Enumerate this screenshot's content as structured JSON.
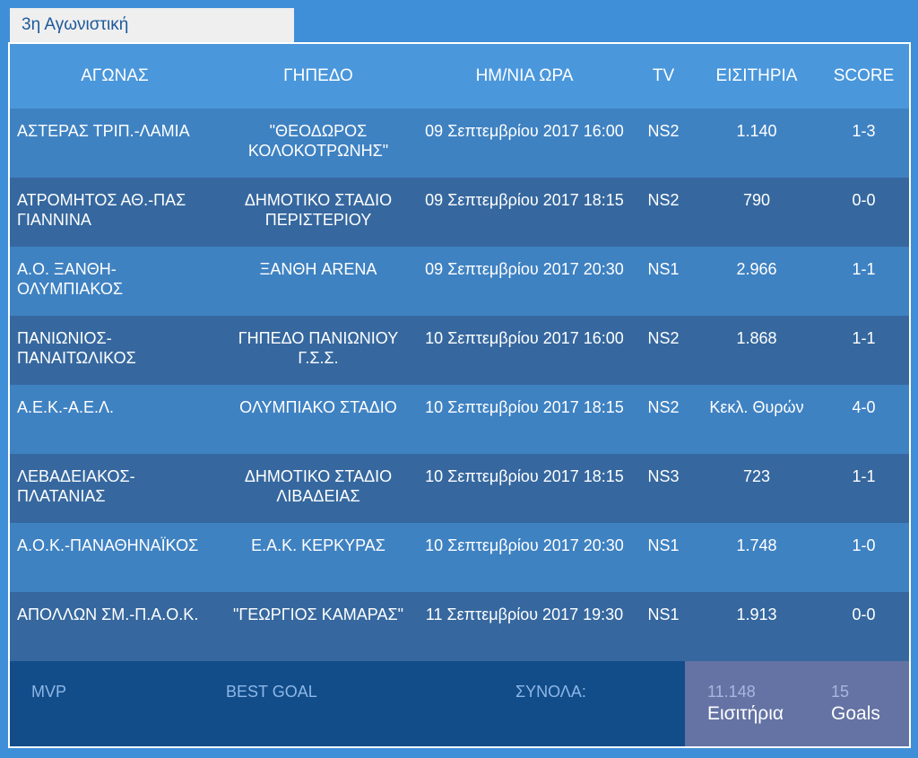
{
  "tab": {
    "label": "3η Αγωνιστική"
  },
  "table": {
    "headers": [
      "ΑΓΩΝΑΣ",
      "ΓΗΠΕΔΟ",
      "ΗΜ/ΝΙΑ ΩΡΑ",
      "TV",
      "ΕΙΣΙΤΗΡΙΑ",
      "SCORE"
    ],
    "rows": [
      {
        "match": "ΑΣΤΕΡΑΣ ΤΡΙΠ.-ΛΑΜΙΑ",
        "stadium": "\"ΘΕΟΔΩΡΟΣ ΚΟΛΟΚΟΤΡΩΝΗΣ\"",
        "datetime": "09 Σεπτεμβρίου 2017 16:00",
        "tv": "NS2",
        "tickets": "1.140",
        "score": "1-3"
      },
      {
        "match": "ΑΤΡΟΜΗΤΟΣ ΑΘ.-ΠΑΣ ΓΙΑΝΝΙΝΑ",
        "stadium": "ΔΗΜΟΤΙΚΟ ΣΤΑΔΙΟ ΠΕΡΙΣΤΕΡΙΟΥ",
        "datetime": "09 Σεπτεμβρίου 2017 18:15",
        "tv": "NS2",
        "tickets": "790",
        "score": "0-0"
      },
      {
        "match": "Α.Ο. ΞΑΝΘΗ-ΟΛΥΜΠΙΑΚΟΣ",
        "stadium": "ΞΑΝΘΗ ARENA",
        "datetime": "09 Σεπτεμβρίου 2017 20:30",
        "tv": "NS1",
        "tickets": "2.966",
        "score": "1-1"
      },
      {
        "match": "ΠΑΝΙΩΝΙΟΣ-ΠΑΝΑΙΤΩΛΙΚΟΣ",
        "stadium": "ΓΗΠΕΔΟ ΠΑΝΙΩΝΙΟΥ Γ.Σ.Σ.",
        "datetime": "10 Σεπτεμβρίου 2017 16:00",
        "tv": "NS2",
        "tickets": "1.868",
        "score": "1-1"
      },
      {
        "match": "Α.Ε.Κ.-Α.Ε.Λ.",
        "stadium": "ΟΛΥΜΠΙΑΚΟ ΣΤΑΔΙΟ",
        "datetime": "10 Σεπτεμβρίου 2017 18:15",
        "tv": "NS2",
        "tickets": "Κεκλ. Θυρών",
        "score": "4-0"
      },
      {
        "match": "ΛΕΒΑΔΕΙΑΚΟΣ-ΠΛΑΤΑΝΙΑΣ",
        "stadium": "ΔΗΜΟΤΙΚΟ ΣΤΑΔΙΟ ΛΙΒΑΔΕΙΑΣ",
        "datetime": "10 Σεπτεμβρίου 2017 18:15",
        "tv": "NS3",
        "tickets": "723",
        "score": "1-1"
      },
      {
        "match": "Α.Ο.Κ.-ΠΑΝΑΘΗΝΑΪΚΟΣ",
        "stadium": "Ε.Α.Κ. ΚΕΡΚΥΡΑΣ",
        "datetime": "10 Σεπτεμβρίου 2017 20:30",
        "tv": "NS1",
        "tickets": "1.748",
        "score": "1-0"
      },
      {
        "match": "ΑΠΟΛΛΩΝ ΣΜ.-Π.Α.Ο.Κ.",
        "stadium": "\"ΓΕΩΡΓΙΟΣ ΚΑΜΑΡΑΣ\"",
        "datetime": "11 Σεπτεμβρίου 2017 19:30",
        "tv": "NS1",
        "tickets": "1.913",
        "score": "0-0"
      }
    ]
  },
  "footer": {
    "mvp_label": "MVP",
    "best_goal_label": "BEST GOAL",
    "totals_label": "ΣΥΝΟΛΑ:",
    "tickets_total": "11.148",
    "tickets_unit": "Εισιτήρια",
    "goals_total": "15",
    "goals_unit": "Goals"
  },
  "colors": {
    "page_bg": "#3f8fd8",
    "header_bg": "#4a97dc",
    "row_light": "#3f82c2",
    "row_dark": "#36689f",
    "footer_bg": "#124d8a",
    "totals_bg": "#6473a4",
    "tab_bg": "#efefef"
  }
}
